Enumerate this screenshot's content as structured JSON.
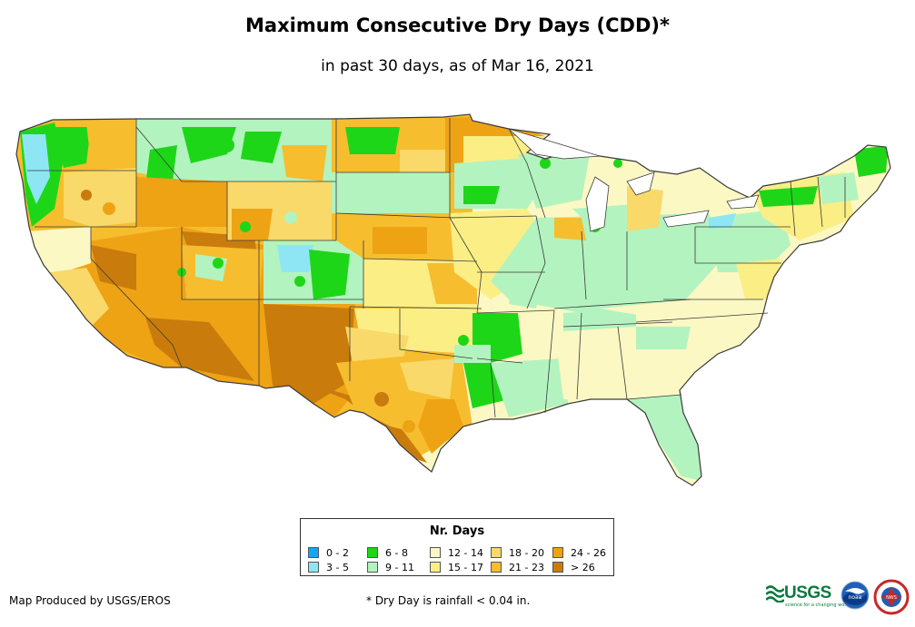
{
  "title": "Maximum Consecutive Dry Days (CDD)*",
  "subtitle": "in past 30 days, as of Mar 16, 2021",
  "legend": {
    "title": "Nr. Days",
    "items": [
      {
        "label": "0 - 2",
        "color": "#11a7f2"
      },
      {
        "label": "3 - 5",
        "color": "#8ee6f5"
      },
      {
        "label": "6 - 8",
        "color": "#1ed618"
      },
      {
        "label": "9 - 11",
        "color": "#b3f3bf"
      },
      {
        "label": "12 - 14",
        "color": "#fbf8c4"
      },
      {
        "label": "15 - 17",
        "color": "#fbee85"
      },
      {
        "label": "18 - 20",
        "color": "#f8d96a"
      },
      {
        "label": "21 - 23",
        "color": "#f6bd2f"
      },
      {
        "label": "24 - 26",
        "color": "#eea315"
      },
      {
        "label": "> 26",
        "color": "#c97c0c"
      }
    ]
  },
  "credit": "Map Produced by USGS/EROS",
  "footnote": "* Dry Day is rainfall < 0.04 in.",
  "logos": {
    "usgs": "USGS",
    "usgs_tagline": "science for a changing world",
    "noaa": "noaa",
    "nws": "NWS"
  },
  "map": {
    "region": "Contiguous United States",
    "state_borders": true,
    "background": "#ffffff",
    "border_color": "#3a3a3a"
  }
}
